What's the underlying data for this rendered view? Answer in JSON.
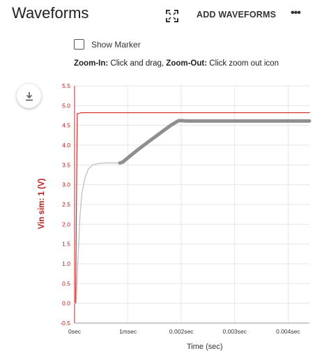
{
  "header": {
    "title": "Waveforms",
    "add_label": "ADD WAVEFORMS",
    "more_label": "•••"
  },
  "controls": {
    "show_marker_label": "Show Marker",
    "show_marker_checked": false,
    "zoom_in_label": "Zoom-In:",
    "zoom_in_text": " Click and drag, ",
    "zoom_out_label": "Zoom-Out:",
    "zoom_out_text": " Click zoom out icon"
  },
  "chart_data": {
    "type": "line",
    "ylabel": "Vin sim: 1 (V)",
    "xlabel": "Time (sec)",
    "ylim": [
      -0.5,
      5.5
    ],
    "xlim": [
      0,
      0.0044
    ],
    "y_ticks": [
      "5.5",
      "5.0",
      "4.5",
      "4.0",
      "3.5",
      "3.0",
      "2.5",
      "2.0",
      "1.5",
      "1.0",
      "0.5",
      "0.0",
      "-0.5"
    ],
    "x_ticks": [
      {
        "value": 0,
        "label": "0sec"
      },
      {
        "value": 0.001,
        "label": "1msec"
      },
      {
        "value": 0.002,
        "label": "0.002sec"
      },
      {
        "value": 0.003,
        "label": "0.003sec"
      },
      {
        "value": 0.004,
        "label": "0.004sec"
      }
    ],
    "grid": true,
    "series": [
      {
        "color": "#d32f2f",
        "x": [
          0,
          2e-05,
          5e-05,
          8e-05,
          0.00012,
          0.0044
        ],
        "y": [
          0,
          0,
          4.8,
          4.8,
          4.82,
          4.82
        ]
      },
      {
        "color": "#bbbbbb",
        "x": [
          0,
          3e-05,
          6e-05,
          0.0001,
          0.00014,
          0.0002,
          0.00026,
          0.00034,
          0.00045,
          0.0006,
          0.0008,
          0.00085
        ],
        "y": [
          0,
          0.0,
          1.0,
          2.2,
          2.8,
          3.2,
          3.4,
          3.5,
          3.54,
          3.55,
          3.55,
          3.55
        ]
      },
      {
        "color": "#8f8f8f",
        "x": [
          0.00085,
          0.0009,
          0.001,
          0.0012,
          0.0014,
          0.0016,
          0.0018,
          0.0019,
          0.00195,
          0.002,
          0.0021,
          0.0025,
          0.003,
          0.0035,
          0.004,
          0.0044
        ],
        "y": [
          3.55,
          3.57,
          3.68,
          3.9,
          4.1,
          4.3,
          4.5,
          4.58,
          4.62,
          4.62,
          4.61,
          4.61,
          4.61,
          4.61,
          4.61,
          4.61
        ]
      }
    ]
  }
}
